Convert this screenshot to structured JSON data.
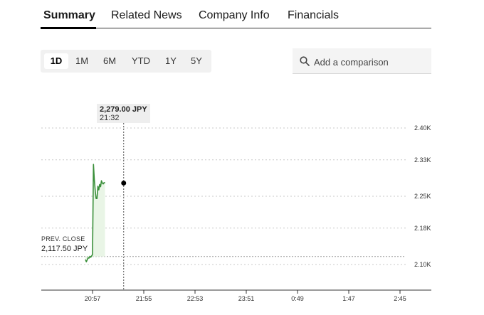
{
  "tabs": [
    {
      "label": "Summary",
      "active": true
    },
    {
      "label": "Related News",
      "active": false
    },
    {
      "label": "Company Info",
      "active": false
    },
    {
      "label": "Financials",
      "active": false
    }
  ],
  "ranges": [
    {
      "label": "1D",
      "active": true
    },
    {
      "label": "1M",
      "active": false
    },
    {
      "label": "6M",
      "active": false
    },
    {
      "label": "YTD",
      "active": false
    },
    {
      "label": "1Y",
      "active": false
    },
    {
      "label": "5Y",
      "active": false
    }
  ],
  "comparison": {
    "placeholder": "Add a comparison",
    "icon": "search-icon"
  },
  "tooltip": {
    "price": "2,279.00 JPY",
    "time": "21:32"
  },
  "prev_close": {
    "label": "PREV. CLOSE",
    "value": "2,117.50 JPY"
  },
  "colors": {
    "line": "#3a8f3a",
    "fill": "#e9f5e6",
    "accent": "#000000"
  },
  "chart_data": {
    "type": "line",
    "y_tick_labels": [
      "2.40K",
      "2.33K",
      "2.25K",
      "2.18K",
      "2.10K"
    ],
    "y_tick_values": [
      2400,
      2330,
      2250,
      2180,
      2100
    ],
    "x_tick_labels": [
      "20:57",
      "21:55",
      "22:53",
      "23:51",
      "0:49",
      "1:47",
      "2:45"
    ],
    "ylim": [
      2050,
      2440
    ],
    "prev_close": 2117.5,
    "series": [
      {
        "x": [
          -8,
          -7,
          -6,
          -5,
          -4,
          -3,
          -2,
          -1,
          0,
          1,
          2,
          3,
          4,
          5,
          6,
          7,
          8,
          9,
          10,
          11,
          12,
          13,
          14
        ],
        "values": [
          2111,
          2106,
          2110,
          2115,
          2114,
          2118,
          2116,
          2119,
          2122,
          2320,
          2287,
          2262,
          2245,
          2245,
          2272,
          2264,
          2276,
          2271,
          2284,
          2279,
          2277,
          2280,
          2279
        ]
      }
    ],
    "cursor": {
      "x": 35,
      "price": 2279
    }
  }
}
